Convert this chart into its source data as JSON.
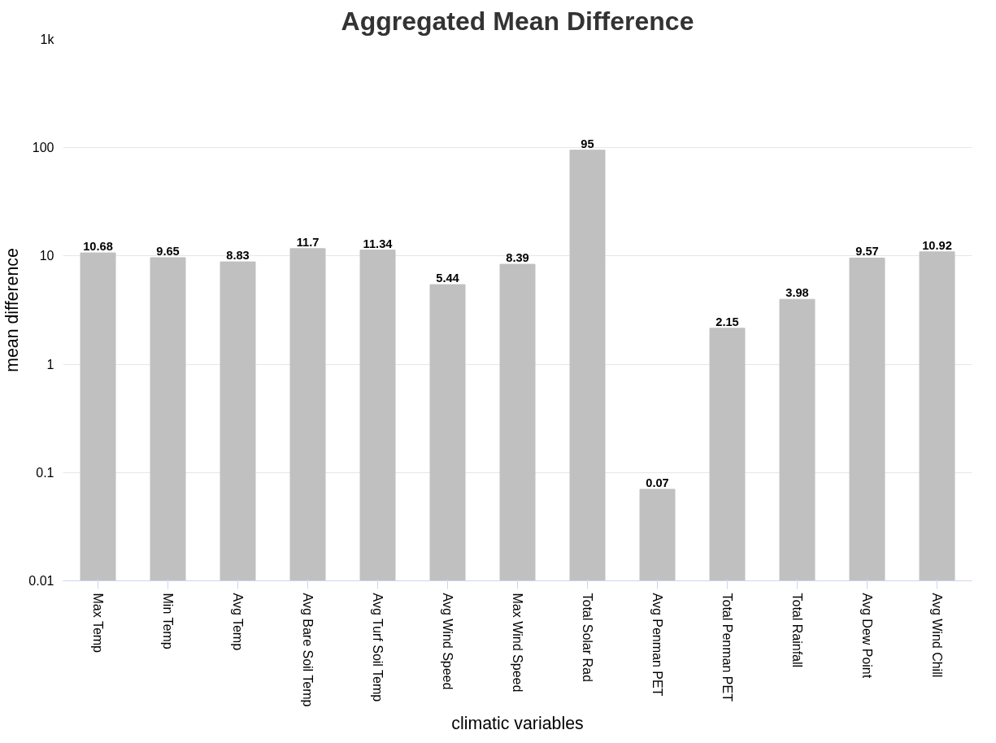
{
  "chart_data": {
    "type": "bar",
    "title": "Aggregated Mean Difference",
    "xlabel": "climatic variables",
    "ylabel": "mean difference",
    "categories": [
      "Max Temp",
      "Min Temp",
      "Avg Temp",
      "Avg Bare Soil Temp",
      "Avg Turf Soil Temp",
      "Avg Wind Speed",
      "Max Wind Speed",
      "Total Solar Rad",
      "Avg Penman PET",
      "Total Penman PET",
      "Total Rainfall",
      "Avg Dew Point",
      "Avg Wind Chill"
    ],
    "values": [
      10.68,
      9.65,
      8.83,
      11.7,
      11.34,
      5.44,
      8.39,
      95,
      0.07,
      2.15,
      3.98,
      9.57,
      10.92
    ],
    "color": "#c0c0c0",
    "log": "y",
    "ylim": [
      0.01,
      1000
    ],
    "yticks": [
      0.01,
      0.1,
      1,
      10,
      100,
      {
        "value": 1000,
        "label": "1k"
      }
    ],
    "grid": "y",
    "data_labels": true
  }
}
